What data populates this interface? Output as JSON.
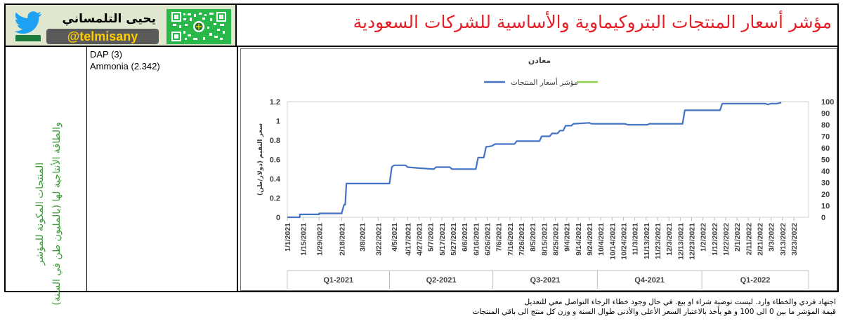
{
  "header": {
    "brand_name": "يحيى التلمساني",
    "brand_handle": "@telmisany",
    "title": "مؤشر أسعار المنتجات البتروكيماوية والأساسية للشركات السعودية"
  },
  "sidebar": {
    "line1": "المنتجات المكونة للمؤشر",
    "line2": "والطاقة الأنتاجية لها (بالمليون طن في السنة)"
  },
  "items": [
    {
      "label": "DAP (3)"
    },
    {
      "label": "Ammonia (2.342)"
    }
  ],
  "chart_data": {
    "type": "line",
    "title": "معادن",
    "legend": [
      "مؤشر أسعار المنتجات",
      ""
    ],
    "legend_position": "top",
    "y_left_label": "سعر التقيم (دولار/طن)",
    "y_left_ticks": [
      "0",
      "0.2",
      "0.4",
      "0.6",
      "0.8",
      "1",
      "1.2"
    ],
    "y_left_range": [
      0,
      1.2
    ],
    "y_right_ticks": [
      "0",
      "10",
      "20",
      "30",
      "40",
      "50",
      "60",
      "70",
      "80",
      "90",
      "100"
    ],
    "y_right_range": [
      0,
      100
    ],
    "x_range": [
      "2021-01-01",
      "2022-04-05"
    ],
    "x_ticks": [
      "1/1/2021",
      "1/15/2021",
      "1/29/2021",
      "2/18/2021",
      "3/8/2021",
      "3/22/2021",
      "4/5/2021",
      "4/17/2021",
      "4/27/2021",
      "5/7/2021",
      "5/17/2021",
      "5/27/2021",
      "6/6/2021",
      "6/16/2021",
      "6/26/2021",
      "7/6/2021",
      "7/16/2021",
      "7/26/2021",
      "8/5/2021",
      "8/15/2021",
      "8/25/2021",
      "9/4/2021",
      "9/14/2021",
      "9/24/2021",
      "10/4/2021",
      "10/14/2021",
      "10/24/2021",
      "11/3/2021",
      "11/13/2021",
      "11/23/2021",
      "12/3/2021",
      "12/13/2021",
      "12/23/2021",
      "1/2/2022",
      "1/12/2022",
      "1/22/2022",
      "2/1/2022",
      "2/11/2022",
      "2/21/2022",
      "3/3/2022",
      "3/13/2022",
      "3/23/2022"
    ],
    "quarters": [
      {
        "label": "Q1-2021",
        "start": "2021-01-01",
        "end": "2021-04-01"
      },
      {
        "label": "Q2-2021",
        "start": "2021-04-01",
        "end": "2021-07-01"
      },
      {
        "label": "Q3-2021",
        "start": "2021-07-01",
        "end": "2021-10-01"
      },
      {
        "label": "Q4-2021",
        "start": "2021-10-01",
        "end": "2022-01-01"
      },
      {
        "label": "Q1-2022",
        "start": "2022-01-01",
        "end": "2022-04-05"
      }
    ],
    "series": [
      {
        "name": "مؤشر أسعار المنتجات",
        "color": "#4472c4",
        "axis": "left",
        "points": [
          [
            "2021-01-01",
            0.0
          ],
          [
            "2021-01-12",
            0.0
          ],
          [
            "2021-01-12",
            0.03
          ],
          [
            "2021-01-29",
            0.03
          ],
          [
            "2021-01-29",
            0.04
          ],
          [
            "2021-02-18",
            0.04
          ],
          [
            "2021-02-18",
            0.05
          ],
          [
            "2021-02-20",
            0.13
          ],
          [
            "2021-02-21",
            0.13
          ],
          [
            "2021-02-22",
            0.35
          ],
          [
            "2021-04-01",
            0.35
          ],
          [
            "2021-04-03",
            0.52
          ],
          [
            "2021-04-05",
            0.54
          ],
          [
            "2021-04-15",
            0.54
          ],
          [
            "2021-04-17",
            0.52
          ],
          [
            "2021-04-27",
            0.51
          ],
          [
            "2021-05-10",
            0.5
          ],
          [
            "2021-05-12",
            0.52
          ],
          [
            "2021-05-24",
            0.52
          ],
          [
            "2021-05-26",
            0.5
          ],
          [
            "2021-06-16",
            0.5
          ],
          [
            "2021-06-18",
            0.62
          ],
          [
            "2021-06-23",
            0.62
          ],
          [
            "2021-06-25",
            0.73
          ],
          [
            "2021-06-30",
            0.74
          ],
          [
            "2021-07-03",
            0.76
          ],
          [
            "2021-07-20",
            0.76
          ],
          [
            "2021-07-22",
            0.79
          ],
          [
            "2021-08-11",
            0.79
          ],
          [
            "2021-08-13",
            0.84
          ],
          [
            "2021-08-20",
            0.84
          ],
          [
            "2021-08-22",
            0.87
          ],
          [
            "2021-08-27",
            0.87
          ],
          [
            "2021-08-29",
            0.9
          ],
          [
            "2021-09-01",
            0.9
          ],
          [
            "2021-09-03",
            0.95
          ],
          [
            "2021-09-08",
            0.95
          ],
          [
            "2021-09-10",
            0.97
          ],
          [
            "2021-09-24",
            0.98
          ],
          [
            "2021-09-26",
            0.97
          ],
          [
            "2021-10-25",
            0.97
          ],
          [
            "2021-10-28",
            0.96
          ],
          [
            "2021-11-14",
            0.96
          ],
          [
            "2021-11-16",
            0.97
          ],
          [
            "2021-12-15",
            0.97
          ],
          [
            "2021-12-17",
            1.11
          ],
          [
            "2022-01-17",
            1.11
          ],
          [
            "2022-01-19",
            1.18
          ],
          [
            "2022-02-26",
            1.18
          ],
          [
            "2022-02-28",
            1.17
          ],
          [
            "2022-03-03",
            1.18
          ],
          [
            "2022-03-08",
            1.18
          ],
          [
            "2022-03-12",
            1.19
          ]
        ]
      },
      {
        "name": "",
        "color": "#92d050",
        "axis": "right",
        "points": []
      }
    ]
  },
  "footer": {
    "line1": "اجتهاد فردي والخطاء وارد. ليست توصية شراء او بيع. في حال وجود خطاء الرجاء التواصل معي للتعديل",
    "line2": "قيمة المؤشر ما بين 0 الى 100 و هو يأخذ بالاعتبار السعر الأعلى والأدنى طوال السنة و وزن كل منتج الى باقي المنتجات"
  }
}
